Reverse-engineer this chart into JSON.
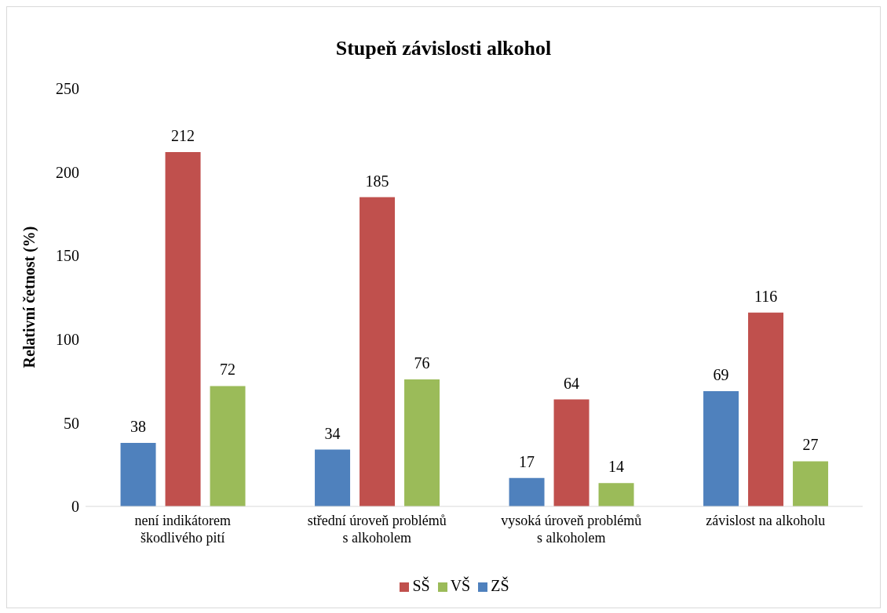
{
  "chart_data": {
    "type": "bar",
    "title": "Stupeň závislosti alkohol",
    "ylabel": "Relativní četnost (%)",
    "categories": [
      "není indikátorem škodlivého pití",
      "střední úroveň problémů s alkoholem",
      "vysoká úroveň problémů s alkoholem",
      "závislost na alkoholu"
    ],
    "series": [
      {
        "name": "ZŠ",
        "color": "#4f81bd",
        "values": [
          38,
          34,
          17,
          69
        ]
      },
      {
        "name": "SŠ",
        "color": "#c0504d",
        "values": [
          212,
          185,
          64,
          116
        ]
      },
      {
        "name": "VŠ",
        "color": "#9bbb59",
        "values": [
          72,
          76,
          14,
          27
        ]
      }
    ],
    "ylim": [
      0,
      250
    ],
    "yticks": [
      0,
      50,
      100,
      150,
      200,
      250
    ],
    "grid": false,
    "legend": "bottom",
    "data_labels": true
  }
}
